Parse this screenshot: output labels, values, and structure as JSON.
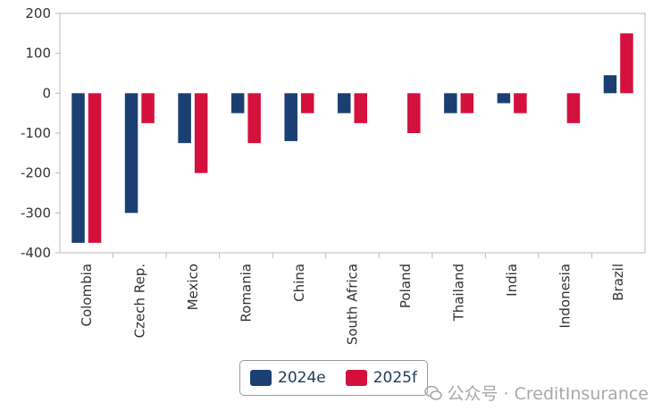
{
  "chart_data": {
    "type": "bar",
    "categories": [
      "Colombia",
      "Czech Rep.",
      "Mexico",
      "Romania",
      "China",
      "South Africa",
      "Poland",
      "Thailand",
      "India",
      "Indonesia",
      "Brazil"
    ],
    "series": [
      {
        "name": "2024e",
        "color": "#1b3f73",
        "values": [
          -375,
          -300,
          -125,
          -50,
          -120,
          -50,
          null,
          -50,
          -25,
          null,
          45
        ]
      },
      {
        "name": "2025f",
        "color": "#d3113c",
        "values": [
          -375,
          -75,
          -200,
          -125,
          -50,
          -75,
          -100,
          -50,
          -50,
          -75,
          150
        ]
      }
    ],
    "yticks": [
      200,
      100,
      0,
      -100,
      -200,
      -300,
      -400
    ],
    "ylim": [
      -400,
      200
    ],
    "grid": false,
    "legend_position": "bottom"
  },
  "watermark": {
    "text": "公众号 · CreditInsurance",
    "icon": "wechat-icon"
  }
}
